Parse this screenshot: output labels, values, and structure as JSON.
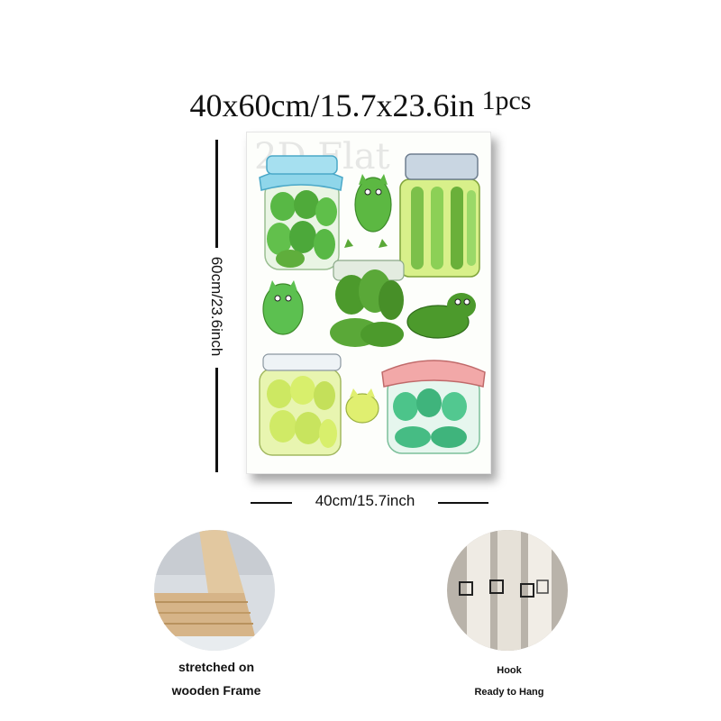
{
  "header": {
    "size_text": "40x60cm/15.7x23.6in",
    "quantity_text": "1pcs"
  },
  "dimensions": {
    "height_label": "60cm/23.6inch",
    "width_label": "40cm/15.7inch"
  },
  "poster": {
    "watermark": "2D Flat",
    "colors": {
      "blue_lid": "#8fd6ea",
      "pink_lid": "#f2a8a8",
      "pickle_green": "#5fae3c",
      "light_green": "#bfe07a",
      "mint": "#4cc48a"
    }
  },
  "features": [
    {
      "label_line1": "stretched on",
      "label_line2": "wooden Frame"
    },
    {
      "label_line1": "Hook",
      "label_line2": "Ready to Hang"
    }
  ]
}
